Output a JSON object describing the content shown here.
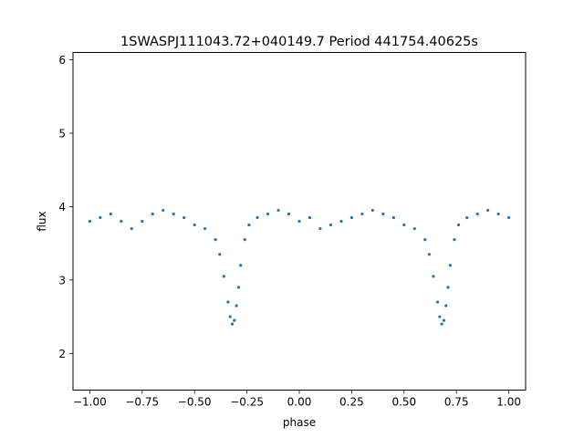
{
  "chart_data": {
    "type": "scatter",
    "title": "1SWASPJ111043.72+040149.7 Period 441754.40625s",
    "xlabel": "phase",
    "ylabel": "flux",
    "xlim": [
      -1.08,
      1.08
    ],
    "ylim": [
      1.5,
      6.1
    ],
    "xticks": [
      -1.0,
      -0.75,
      -0.5,
      -0.25,
      0.0,
      0.25,
      0.5,
      0.75,
      1.0
    ],
    "xtick_labels": [
      "−1.00",
      "−0.75",
      "−0.50",
      "−0.25",
      "0.00",
      "0.25",
      "0.50",
      "0.75",
      "1.00"
    ],
    "yticks": [
      2,
      3,
      4,
      5,
      6
    ],
    "ytick_labels": [
      "2",
      "3",
      "4",
      "5",
      "6"
    ],
    "grid": false,
    "marker_color": "#1f77b4",
    "series": [
      {
        "x": [
          -1.0,
          -0.95,
          -0.9,
          -0.85,
          -0.8,
          -0.75,
          -0.7,
          -0.65,
          -0.6,
          -0.55,
          -0.5,
          -0.45,
          -0.4,
          -0.38,
          -0.36,
          -0.34,
          -0.33,
          -0.32,
          -0.31,
          -0.3,
          -0.29,
          -0.28,
          -0.26,
          -0.24,
          -0.2,
          -0.15,
          -0.1,
          -0.05,
          0.0,
          0.05,
          0.1,
          0.15,
          0.2,
          0.25,
          0.3,
          0.35,
          0.4,
          0.45,
          0.5,
          0.55,
          0.6,
          0.62,
          0.64,
          0.66,
          0.67,
          0.68,
          0.69,
          0.7,
          0.71,
          0.72,
          0.74,
          0.76,
          0.8,
          0.85,
          0.9,
          0.95,
          1.0
        ],
        "y": [
          3.8,
          3.85,
          3.9,
          3.8,
          3.7,
          3.8,
          3.9,
          3.95,
          3.9,
          3.85,
          3.75,
          3.7,
          3.55,
          3.35,
          3.05,
          2.7,
          2.5,
          2.4,
          2.45,
          2.65,
          2.9,
          3.2,
          3.55,
          3.75,
          3.85,
          3.9,
          3.95,
          3.9,
          3.8,
          3.85,
          3.7,
          3.75,
          3.8,
          3.85,
          3.9,
          3.95,
          3.9,
          3.85,
          3.75,
          3.7,
          3.55,
          3.35,
          3.05,
          2.7,
          2.5,
          2.4,
          2.45,
          2.65,
          2.9,
          3.2,
          3.55,
          3.75,
          3.85,
          3.9,
          3.95,
          3.9,
          3.85
        ]
      }
    ]
  }
}
